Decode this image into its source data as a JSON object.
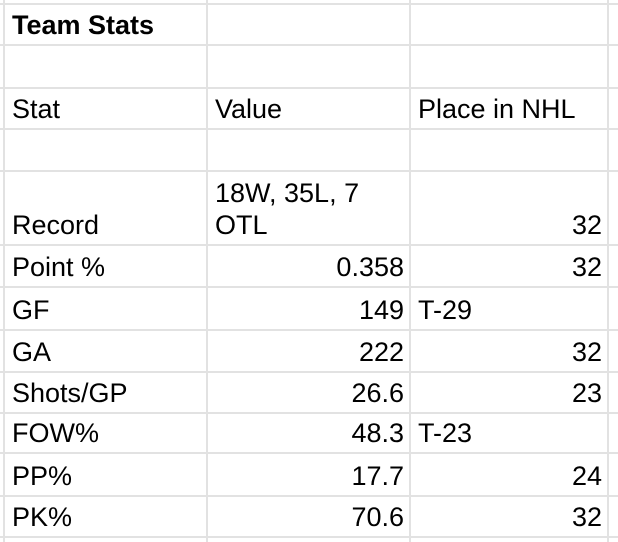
{
  "sheet": {
    "title": "Team Stats",
    "headers": {
      "stat": "Stat",
      "value": "Value",
      "place": "Place in NHL"
    },
    "rows": [
      {
        "stat": "Record",
        "value": "18W, 35L, 7 OTL",
        "place": "32"
      },
      {
        "stat": "Point %",
        "value": "0.358",
        "place": "32"
      },
      {
        "stat": "GF",
        "value": "149",
        "place": "T-29"
      },
      {
        "stat": "GA",
        "value": "222",
        "place": "32"
      },
      {
        "stat": "Shots/GP",
        "value": "26.6",
        "place": "23"
      },
      {
        "stat": "FOW%",
        "value": "48.3",
        "place": "T-23"
      },
      {
        "stat": "PP%",
        "value": "17.7",
        "place": "24"
      },
      {
        "stat": "PK%",
        "value": "70.6",
        "place": "32"
      }
    ],
    "colors": {
      "background": "#ffffff",
      "gridline": "#e2e2e2",
      "text": "#000000"
    }
  }
}
